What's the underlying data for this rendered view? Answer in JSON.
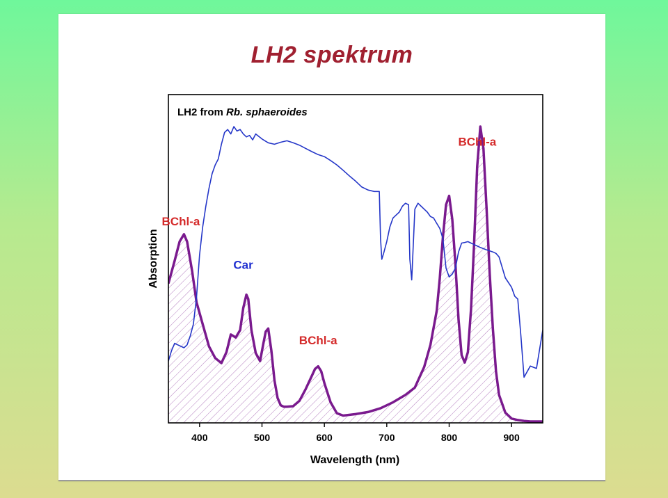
{
  "slide": {
    "title": "LH2 spektrum"
  },
  "chart_data": {
    "type": "line",
    "title": "",
    "inset_title": {
      "prefix": "LH2 from ",
      "italic": "Rb. sphaeroides"
    },
    "xlabel": "Wavelength (nm)",
    "ylabel": "Absorption",
    "xlim": [
      350,
      950
    ],
    "ylim": [
      0,
      1
    ],
    "x_ticks": [
      400,
      500,
      600,
      700,
      800,
      900
    ],
    "y_ticks_visible": false,
    "grid": false,
    "legend": "none",
    "annotations": [
      {
        "text": "BChl-a",
        "x": 370,
        "y": 0.665,
        "color": "#d42a2a"
      },
      {
        "text": "Car",
        "x": 470,
        "y": 0.518,
        "color": "#1f2fd0"
      },
      {
        "text": "BChl-a",
        "x": 590,
        "y": 0.262,
        "color": "#d42a2a"
      },
      {
        "text": "BChl-a",
        "x": 845,
        "y": 0.935,
        "color": "#d42a2a"
      }
    ],
    "series": [
      {
        "color": "#7a1a8e",
        "fill": "hatched",
        "x": [
          350,
          360,
          368,
          375,
          380,
          388,
          395,
          405,
          415,
          425,
          435,
          443,
          450,
          458,
          465,
          470,
          475,
          478,
          483,
          490,
          497,
          502,
          506,
          510,
          515,
          520,
          525,
          530,
          535,
          540,
          550,
          560,
          570,
          580,
          585,
          590,
          595,
          600,
          610,
          620,
          630,
          650,
          670,
          690,
          710,
          730,
          745,
          760,
          770,
          780,
          785,
          790,
          795,
          800,
          805,
          810,
          815,
          820,
          825,
          830,
          835,
          840,
          845,
          850,
          855,
          860,
          865,
          870,
          875,
          880,
          890,
          900,
          910,
          920,
          930,
          940,
          950
        ],
        "y": [
          0.468,
          0.545,
          0.61,
          0.635,
          0.61,
          0.51,
          0.405,
          0.33,
          0.255,
          0.215,
          0.198,
          0.235,
          0.295,
          0.285,
          0.31,
          0.385,
          0.43,
          0.415,
          0.31,
          0.232,
          0.205,
          0.262,
          0.305,
          0.315,
          0.24,
          0.14,
          0.08,
          0.055,
          0.05,
          0.05,
          0.052,
          0.07,
          0.11,
          0.155,
          0.178,
          0.187,
          0.17,
          0.13,
          0.065,
          0.028,
          0.02,
          0.025,
          0.032,
          0.045,
          0.065,
          0.09,
          0.115,
          0.185,
          0.26,
          0.375,
          0.485,
          0.625,
          0.735,
          0.765,
          0.685,
          0.535,
          0.345,
          0.225,
          0.2,
          0.235,
          0.38,
          0.605,
          0.865,
          1.0,
          0.925,
          0.72,
          0.5,
          0.315,
          0.17,
          0.09,
          0.03,
          0.01,
          0.005,
          0.002,
          0.0,
          0.0,
          0.0
        ]
      },
      {
        "color": "#2436c8",
        "fill": "none",
        "x": [
          350,
          355,
          360,
          365,
          370,
          375,
          380,
          385,
          390,
          395,
          400,
          405,
          410,
          415,
          420,
          425,
          430,
          435,
          440,
          445,
          450,
          455,
          460,
          465,
          470,
          475,
          480,
          485,
          490,
          500,
          510,
          520,
          530,
          540,
          550,
          560,
          570,
          580,
          590,
          600,
          610,
          620,
          630,
          640,
          650,
          660,
          670,
          680,
          688,
          690,
          692,
          695,
          700,
          705,
          710,
          715,
          720,
          725,
          730,
          735,
          737,
          740,
          745,
          750,
          755,
          760,
          765,
          770,
          775,
          780,
          785,
          790,
          795,
          800,
          805,
          810,
          815,
          820,
          825,
          830,
          840,
          850,
          860,
          870,
          875,
          880,
          890,
          900,
          905,
          910,
          915,
          920,
          930,
          940,
          950
        ],
        "y": [
          0.205,
          0.24,
          0.265,
          0.26,
          0.255,
          0.25,
          0.26,
          0.29,
          0.33,
          0.42,
          0.565,
          0.66,
          0.73,
          0.79,
          0.84,
          0.87,
          0.89,
          0.94,
          0.98,
          0.99,
          0.975,
          1.0,
          0.985,
          0.99,
          0.975,
          0.965,
          0.97,
          0.955,
          0.975,
          0.958,
          0.945,
          0.94,
          0.947,
          0.952,
          0.945,
          0.937,
          0.926,
          0.915,
          0.905,
          0.898,
          0.885,
          0.87,
          0.852,
          0.833,
          0.815,
          0.795,
          0.785,
          0.78,
          0.78,
          0.62,
          0.55,
          0.57,
          0.61,
          0.66,
          0.69,
          0.7,
          0.71,
          0.73,
          0.74,
          0.735,
          0.55,
          0.48,
          0.72,
          0.74,
          0.73,
          0.72,
          0.71,
          0.695,
          0.69,
          0.672,
          0.655,
          0.62,
          0.52,
          0.49,
          0.5,
          0.52,
          0.575,
          0.605,
          0.607,
          0.61,
          0.6,
          0.59,
          0.582,
          0.575,
          0.57,
          0.558,
          0.487,
          0.455,
          0.425,
          0.415,
          0.29,
          0.15,
          0.188,
          0.18,
          0.31
        ]
      }
    ]
  }
}
